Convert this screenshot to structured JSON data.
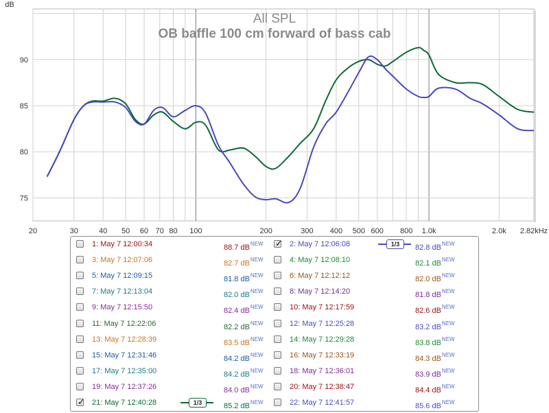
{
  "chart_data": {
    "type": "line",
    "title": "All SPL",
    "subtitle": "OB baffle 100 cm forward of bass cab",
    "ylabel": "dB",
    "xlabel": "",
    "xscale": "log",
    "xlim": [
      20,
      2820
    ],
    "ylim": [
      72.5,
      95.5
    ],
    "grid": true,
    "x_ticks": [
      {
        "v": 20,
        "label": "20"
      },
      {
        "v": 30,
        "label": "30"
      },
      {
        "v": 40,
        "label": "40"
      },
      {
        "v": 50,
        "label": "50"
      },
      {
        "v": 60,
        "label": "60"
      },
      {
        "v": 70,
        "label": "70"
      },
      {
        "v": 80,
        "label": "80"
      },
      {
        "v": 100,
        "label": "100"
      },
      {
        "v": 200,
        "label": "200"
      },
      {
        "v": 300,
        "label": "300"
      },
      {
        "v": 400,
        "label": "400"
      },
      {
        "v": 500,
        "label": "500"
      },
      {
        "v": 600,
        "label": "600"
      },
      {
        "v": 800,
        "label": "800"
      },
      {
        "v": 1000,
        "label": "1.0k"
      },
      {
        "v": 2000,
        "label": "2.0k"
      },
      {
        "v": 2820,
        "label": "2.82kHz"
      }
    ],
    "y_ticks": [
      {
        "v": 75,
        "label": "75"
      },
      {
        "v": 80,
        "label": "80"
      },
      {
        "v": 85,
        "label": "85"
      },
      {
        "v": 90,
        "label": "90"
      }
    ],
    "series": [
      {
        "name": "21: May 7 12:40:28",
        "color": "#0c6838",
        "x": [
          23,
          26,
          30,
          33,
          36,
          40,
          45,
          50,
          55,
          60,
          66,
          72,
          80,
          90,
          100,
          110,
          125,
          140,
          160,
          180,
          200,
          220,
          250,
          280,
          320,
          360,
          400,
          450,
          500,
          550,
          600,
          650,
          700,
          800,
          900,
          950,
          1000,
          1100,
          1300,
          1500,
          1700,
          2000,
          2400,
          2820
        ],
        "y": [
          77.3,
          80,
          83.5,
          85,
          85.5,
          85.5,
          85.8,
          85.2,
          83.5,
          83,
          84,
          84.3,
          83.3,
          82.5,
          83.2,
          82.9,
          80.2,
          80.2,
          80.4,
          79.5,
          78.4,
          78.2,
          79.5,
          80.9,
          82.5,
          85.5,
          87.8,
          89.1,
          89.8,
          90,
          89.5,
          89.3,
          89.8,
          90.8,
          91.3,
          91,
          90.5,
          88.4,
          87.5,
          87.5,
          87.3,
          86,
          84.6,
          84.3
        ]
      },
      {
        "name": "2: May 7 12:06:08",
        "color": "#4a46c0",
        "x": [
          23,
          26,
          30,
          33,
          36,
          40,
          45,
          50,
          55,
          60,
          66,
          72,
          80,
          90,
          100,
          110,
          125,
          140,
          160,
          180,
          200,
          220,
          250,
          280,
          320,
          360,
          400,
          450,
          500,
          550,
          600,
          650,
          700,
          800,
          900,
          950,
          1000,
          1100,
          1300,
          1500,
          1700,
          2000,
          2400,
          2820
        ],
        "y": [
          77.3,
          80,
          83.5,
          85,
          85.4,
          85.4,
          85.4,
          84.8,
          83.3,
          83,
          84.5,
          84.8,
          83.8,
          84.5,
          85,
          84.2,
          80.7,
          78.8,
          76.5,
          75.1,
          74.8,
          74.9,
          74.5,
          76,
          80.5,
          83,
          84.3,
          86.5,
          88.6,
          90.3,
          90,
          89,
          88.2,
          86.8,
          86,
          85.9,
          86,
          86.9,
          86.8,
          85.8,
          85.2,
          84,
          82.5,
          82.3
        ]
      }
    ]
  },
  "legend": {
    "new_badge": "NEW",
    "smoothing_label": "1/3",
    "entries": [
      {
        "name": "1: May 7 12:00:34",
        "value": "88.7 dB",
        "color": "#a01010",
        "checked": false
      },
      {
        "name": "2: May 7 12:06:08",
        "value": "82.8 dB",
        "color": "#4a46c0",
        "checked": true
      },
      {
        "name": "3: May 7 12:07:06",
        "value": "82.7 dB",
        "color": "#c8741c",
        "checked": false
      },
      {
        "name": "4: May 7 12:08:10",
        "value": "82.1 dB",
        "color": "#1a8a2c",
        "checked": false
      },
      {
        "name": "5: May 7 12:09:15",
        "value": "81.8 dB",
        "color": "#1a5aa8",
        "checked": false
      },
      {
        "name": "6: May 7 12:12:12",
        "value": "82.0 dB",
        "color": "#9a5418",
        "checked": false
      },
      {
        "name": "7: May 7 12:13:04",
        "value": "82.0 dB",
        "color": "#1a7a8a",
        "checked": false
      },
      {
        "name": "8: May 7 12:14:20",
        "value": "81.8 dB",
        "color": "#7a2a9a",
        "checked": false
      },
      {
        "name": "9: May 7 12:15:50",
        "value": "82.4 dB",
        "color": "#8a2a9a",
        "checked": false
      },
      {
        "name": "10: May 7 12:17:59",
        "value": "82.6 dB",
        "color": "#a01010",
        "checked": false
      },
      {
        "name": "11: May 7 12:22:06",
        "value": "82.2 dB",
        "color": "#2a6a2a",
        "checked": false
      },
      {
        "name": "12: May 7 12:25:28",
        "value": "83.2 dB",
        "color": "#4a4ac0",
        "checked": false
      },
      {
        "name": "13: May 7 12:28:39",
        "value": "83.5 dB",
        "color": "#c8741c",
        "checked": false
      },
      {
        "name": "14: May 7 12:29:28",
        "value": "83.8 dB",
        "color": "#1a8a2c",
        "checked": false
      },
      {
        "name": "15: May 7 12:31:46",
        "value": "84.2 dB",
        "color": "#1a5aa8",
        "checked": false
      },
      {
        "name": "16: May 7 12:33:19",
        "value": "84.3 dB",
        "color": "#9a5418",
        "checked": false
      },
      {
        "name": "17: May 7 12:35:00",
        "value": "84.2 dB",
        "color": "#1a7a8a",
        "checked": false
      },
      {
        "name": "18: May 7 12:36:01",
        "value": "83.9 dB",
        "color": "#7a2a9a",
        "checked": false
      },
      {
        "name": "19: May 7 12:37:26",
        "value": "84.0 dB",
        "color": "#8a2a9a",
        "checked": false
      },
      {
        "name": "20: May 7 12:38:47",
        "value": "84.4 dB",
        "color": "#a01010",
        "checked": false
      },
      {
        "name": "21: May 7 12:40:28",
        "value": "85.2 dB",
        "color": "#0c6838",
        "checked": true
      },
      {
        "name": "22: May 7 12:41:57",
        "value": "85.6 dB",
        "color": "#4a4ac0",
        "checked": false
      }
    ]
  }
}
